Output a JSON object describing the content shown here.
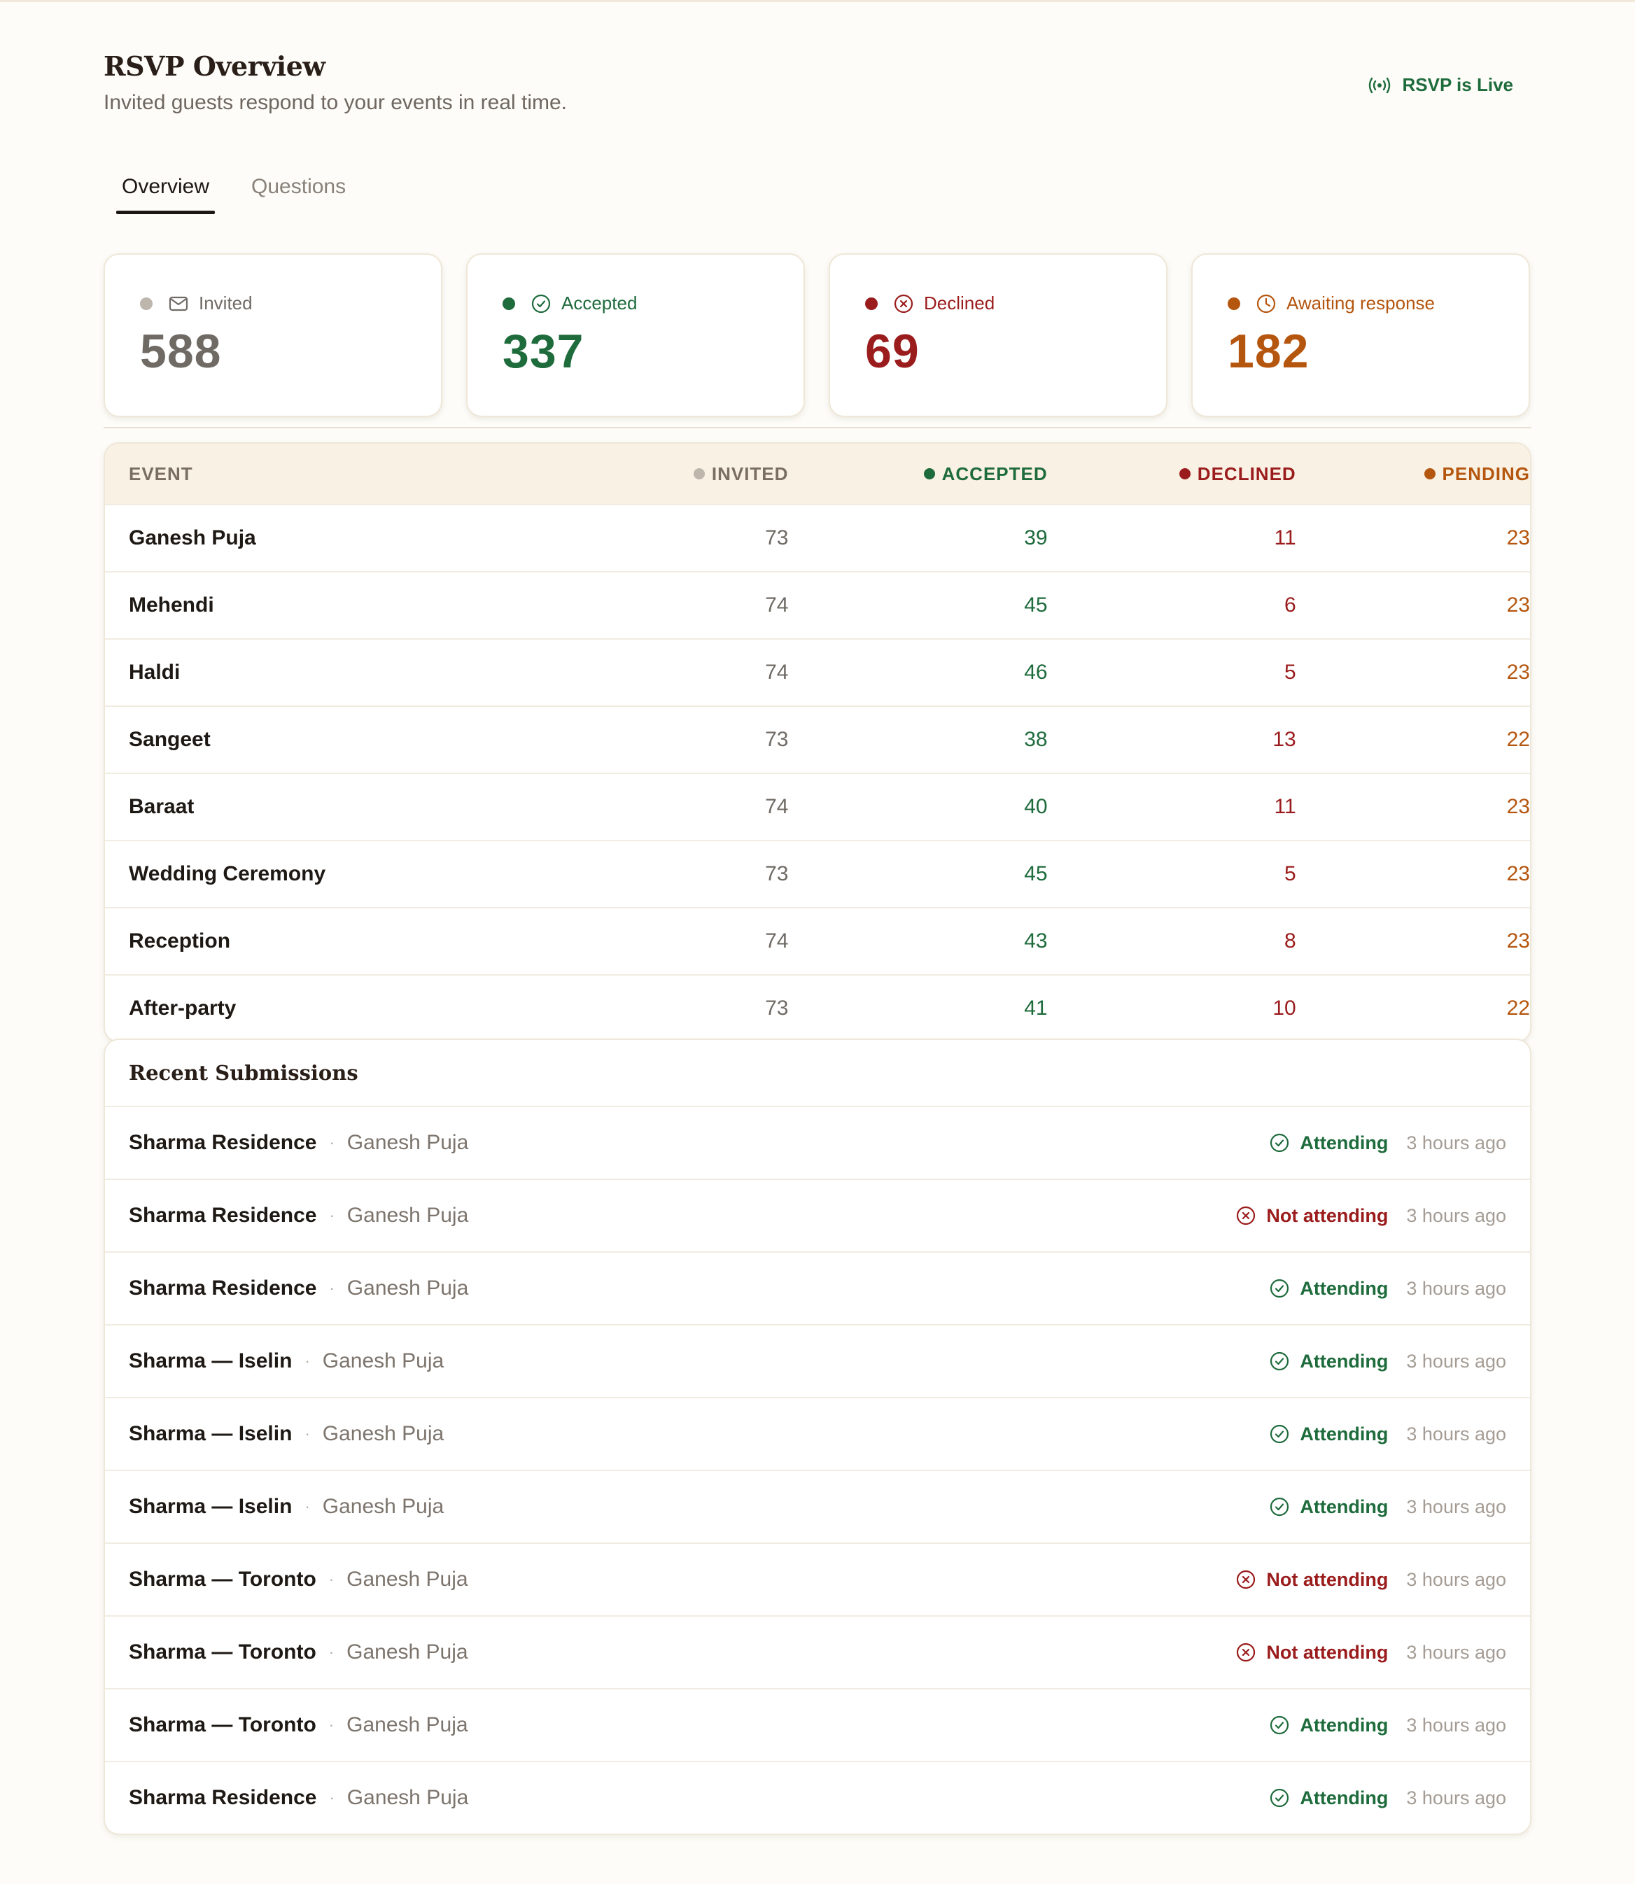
{
  "header": {
    "title": "RSVP Overview",
    "subtitle": "Invited guests respond to your events in real time.",
    "live_label": "RSVP is Live"
  },
  "tabs": [
    {
      "label": "Overview",
      "active": true
    },
    {
      "label": "Questions",
      "active": false
    }
  ],
  "colors": {
    "invited": "#6f6a64",
    "invited_dot": "#bdb6ad",
    "accepted": "#1e6b3c",
    "declined": "#9b1c1c",
    "pending": "#b5560f"
  },
  "stats": {
    "invited": {
      "label": "Invited",
      "value": "588",
      "icon": "mail-icon"
    },
    "accepted": {
      "label": "Accepted",
      "value": "337",
      "icon": "check-circle-icon"
    },
    "declined": {
      "label": "Declined",
      "value": "69",
      "icon": "x-circle-icon"
    },
    "pending": {
      "label": "Awaiting response",
      "value": "182",
      "icon": "clock-icon"
    }
  },
  "events_table": {
    "headers": {
      "event": "EVENT",
      "invited": "INVITED",
      "accepted": "ACCEPTED",
      "declined": "DECLINED",
      "pending": "PENDING"
    },
    "rows": [
      {
        "event": "Ganesh Puja",
        "invited": "73",
        "accepted": "39",
        "declined": "11",
        "pending": "23"
      },
      {
        "event": "Mehendi",
        "invited": "74",
        "accepted": "45",
        "declined": "6",
        "pending": "23"
      },
      {
        "event": "Haldi",
        "invited": "74",
        "accepted": "46",
        "declined": "5",
        "pending": "23"
      },
      {
        "event": "Sangeet",
        "invited": "73",
        "accepted": "38",
        "declined": "13",
        "pending": "22"
      },
      {
        "event": "Baraat",
        "invited": "74",
        "accepted": "40",
        "declined": "11",
        "pending": "23"
      },
      {
        "event": "Wedding Ceremony",
        "invited": "73",
        "accepted": "45",
        "declined": "5",
        "pending": "23"
      },
      {
        "event": "Reception",
        "invited": "74",
        "accepted": "43",
        "declined": "8",
        "pending": "23"
      },
      {
        "event": "After-party",
        "invited": "73",
        "accepted": "41",
        "declined": "10",
        "pending": "22"
      }
    ]
  },
  "recent": {
    "title": "Recent Submissions",
    "separator": "·",
    "items": [
      {
        "name": "Sharma Residence",
        "event": "Ganesh Puja",
        "status": "Attending",
        "attending": true,
        "time": "3 hours ago"
      },
      {
        "name": "Sharma Residence",
        "event": "Ganesh Puja",
        "status": "Not attending",
        "attending": false,
        "time": "3 hours ago"
      },
      {
        "name": "Sharma Residence",
        "event": "Ganesh Puja",
        "status": "Attending",
        "attending": true,
        "time": "3 hours ago"
      },
      {
        "name": "Sharma — Iselin",
        "event": "Ganesh Puja",
        "status": "Attending",
        "attending": true,
        "time": "3 hours ago"
      },
      {
        "name": "Sharma — Iselin",
        "event": "Ganesh Puja",
        "status": "Attending",
        "attending": true,
        "time": "3 hours ago"
      },
      {
        "name": "Sharma — Iselin",
        "event": "Ganesh Puja",
        "status": "Attending",
        "attending": true,
        "time": "3 hours ago"
      },
      {
        "name": "Sharma — Toronto",
        "event": "Ganesh Puja",
        "status": "Not attending",
        "attending": false,
        "time": "3 hours ago"
      },
      {
        "name": "Sharma — Toronto",
        "event": "Ganesh Puja",
        "status": "Not attending",
        "attending": false,
        "time": "3 hours ago"
      },
      {
        "name": "Sharma — Toronto",
        "event": "Ganesh Puja",
        "status": "Attending",
        "attending": true,
        "time": "3 hours ago"
      },
      {
        "name": "Sharma Residence",
        "event": "Ganesh Puja",
        "status": "Attending",
        "attending": true,
        "time": "3 hours ago"
      }
    ]
  }
}
